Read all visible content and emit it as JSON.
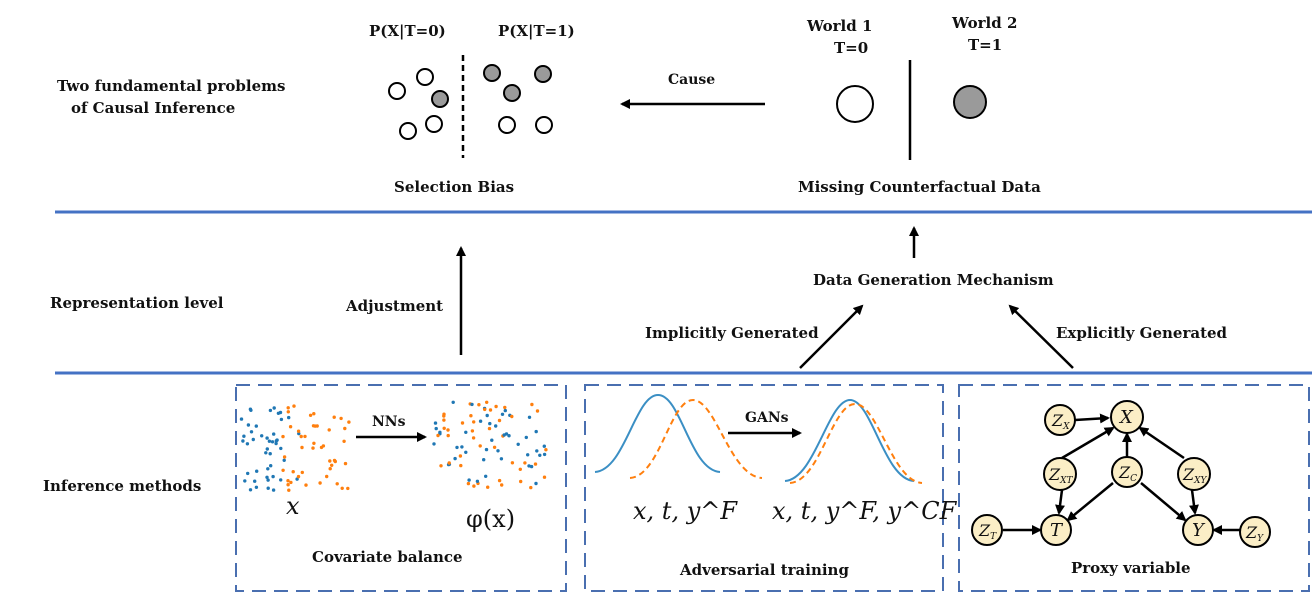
{
  "levels": {
    "top": "Two fundamental problems\nof Causal Inference",
    "top_line1": "Two fundamental problems",
    "top_line2": "of Causal Inference",
    "middle": "Representation level",
    "bottom": "Inference methods"
  },
  "selection_bias": {
    "p_t0": "P(X|T=0)",
    "p_t1": "P(X|T=1)",
    "caption": "Selection Bias"
  },
  "cause_label": "Cause",
  "counterfactual": {
    "world1": "World 1",
    "world1_t": "T=0",
    "world2": "World 2",
    "world2_t": "T=1",
    "caption": "Missing Counterfactual Data"
  },
  "representation": {
    "adjustment": "Adjustment",
    "mechanism": "Data Generation Mechanism",
    "implicit": "Implicitly Generated",
    "explicit": "Explicitly Generated"
  },
  "methods": {
    "covariate": {
      "arrow": "NNs",
      "left_math": "x",
      "right_math": "φ(x)",
      "caption": "Covariate balance"
    },
    "adversarial": {
      "arrow": "GANs",
      "left_math": "x, t, y^F",
      "right_math": "x, t, y^F, y^CF",
      "caption": "Adversarial training"
    },
    "proxy": {
      "caption": "Proxy variable",
      "nodes": [
        "Z_X",
        "X",
        "Z_XT",
        "Z_C",
        "Z_XY",
        "Z_T",
        "T",
        "Y",
        "Z_Y"
      ]
    }
  },
  "colors": {
    "divider": "#4472c4",
    "box_dash": "#4a6fb0",
    "gray_fill": "#9a9a9a",
    "dot_blue": "#1f77b4",
    "dot_orange": "#ff7f0e",
    "node_fill": "#fbeec6"
  }
}
